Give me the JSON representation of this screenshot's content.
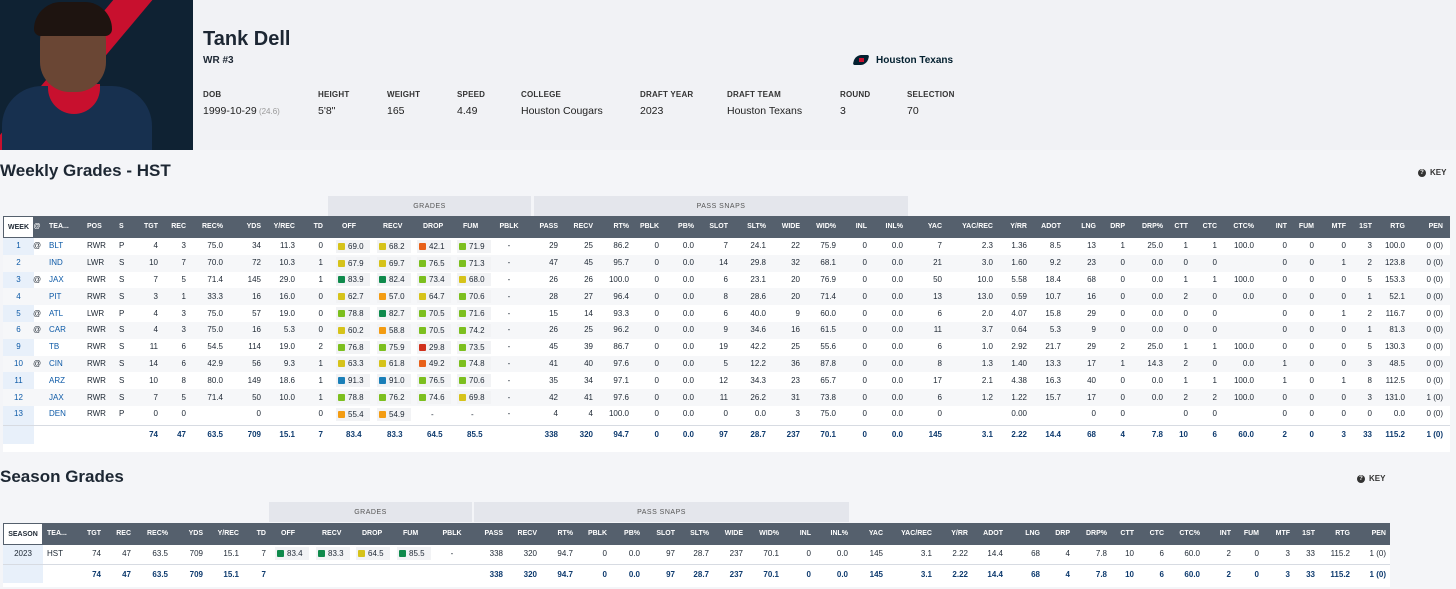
{
  "player": {
    "name": "Tank Dell",
    "position": "WR #3",
    "team": "Houston Texans",
    "team_icon": "texans-logo-icon",
    "bio": [
      {
        "label": "DOB",
        "value": "1999-10-29",
        "sub": "(24.6)"
      },
      {
        "label": "HEIGHT",
        "value": "5'8\""
      },
      {
        "label": "WEIGHT",
        "value": "165"
      },
      {
        "label": "SPEED",
        "value": "4.49"
      },
      {
        "label": "COLLEGE",
        "value": "Houston Cougars"
      },
      {
        "label": "DRAFT YEAR",
        "value": "2023"
      },
      {
        "label": "DRAFT TEAM",
        "value": "Houston Texans"
      },
      {
        "label": "ROUND",
        "value": "3"
      },
      {
        "label": "SELECTION",
        "value": "70"
      }
    ]
  },
  "weekly": {
    "title": "Weekly Grades - HST",
    "key_label": "KEY",
    "group_grades": "GRADES",
    "group_pass_snaps": "PASS SNAPS",
    "columns": [
      "WEEK",
      "@",
      "TEA...",
      "POS",
      "S",
      "TGT",
      "REC",
      "REC%",
      "YDS",
      "Y/REC",
      "TD",
      "OFF",
      "RECV",
      "DROP",
      "FUM",
      "PBLK",
      "PASS",
      "RECV",
      "RT%",
      "PBLK",
      "PB%",
      "SLOT",
      "SLT%",
      "WIDE",
      "WID%",
      "INL",
      "INL%",
      "YAC",
      "YAC/REC",
      "Y/RR",
      "ADOT",
      "LNG",
      "DRP",
      "DRP%",
      "CTT",
      "CTC",
      "CTC%",
      "INT",
      "FUM",
      "MTF",
      "1ST",
      "RTG",
      "PEN"
    ],
    "rows": [
      [
        "1",
        "@",
        "BLT",
        "RWR",
        "P",
        "4",
        "3",
        "75.0",
        "34",
        "11.3",
        "0",
        "69.0",
        "68.2",
        "42.1",
        "71.9",
        "-",
        "29",
        "25",
        "86.2",
        "0",
        "0.0",
        "7",
        "24.1",
        "22",
        "75.9",
        "0",
        "0.0",
        "7",
        "2.3",
        "1.36",
        "8.5",
        "13",
        "1",
        "25.0",
        "1",
        "1",
        "100.0",
        "0",
        "0",
        "0",
        "3",
        "100.0",
        "0 (0)"
      ],
      [
        "2",
        "",
        "IND",
        "LWR",
        "S",
        "10",
        "7",
        "70.0",
        "72",
        "10.3",
        "1",
        "67.9",
        "69.7",
        "76.5",
        "71.3",
        "-",
        "47",
        "45",
        "95.7",
        "0",
        "0.0",
        "14",
        "29.8",
        "32",
        "68.1",
        "0",
        "0.0",
        "21",
        "3.0",
        "1.60",
        "9.2",
        "23",
        "0",
        "0.0",
        "0",
        "0",
        "",
        "0",
        "0",
        "1",
        "2",
        "123.8",
        "0 (0)"
      ],
      [
        "3",
        "@",
        "JAX",
        "RWR",
        "S",
        "7",
        "5",
        "71.4",
        "145",
        "29.0",
        "1",
        "83.9",
        "82.4",
        "73.4",
        "68.0",
        "-",
        "26",
        "26",
        "100.0",
        "0",
        "0.0",
        "6",
        "23.1",
        "20",
        "76.9",
        "0",
        "0.0",
        "50",
        "10.0",
        "5.58",
        "18.4",
        "68",
        "0",
        "0.0",
        "1",
        "1",
        "100.0",
        "0",
        "0",
        "0",
        "5",
        "153.3",
        "0 (0)"
      ],
      [
        "4",
        "",
        "PIT",
        "RWR",
        "S",
        "3",
        "1",
        "33.3",
        "16",
        "16.0",
        "0",
        "62.7",
        "57.0",
        "64.7",
        "70.6",
        "-",
        "28",
        "27",
        "96.4",
        "0",
        "0.0",
        "8",
        "28.6",
        "20",
        "71.4",
        "0",
        "0.0",
        "13",
        "13.0",
        "0.59",
        "10.7",
        "16",
        "0",
        "0.0",
        "2",
        "0",
        "0.0",
        "0",
        "0",
        "0",
        "1",
        "52.1",
        "0 (0)"
      ],
      [
        "5",
        "@",
        "ATL",
        "LWR",
        "P",
        "4",
        "3",
        "75.0",
        "57",
        "19.0",
        "0",
        "78.8",
        "82.7",
        "70.5",
        "71.6",
        "-",
        "15",
        "14",
        "93.3",
        "0",
        "0.0",
        "6",
        "40.0",
        "9",
        "60.0",
        "0",
        "0.0",
        "6",
        "2.0",
        "4.07",
        "15.8",
        "29",
        "0",
        "0.0",
        "0",
        "0",
        "",
        "0",
        "0",
        "1",
        "2",
        "116.7",
        "0 (0)"
      ],
      [
        "6",
        "@",
        "CAR",
        "RWR",
        "S",
        "4",
        "3",
        "75.0",
        "16",
        "5.3",
        "0",
        "60.2",
        "58.8",
        "70.5",
        "74.2",
        "-",
        "26",
        "25",
        "96.2",
        "0",
        "0.0",
        "9",
        "34.6",
        "16",
        "61.5",
        "0",
        "0.0",
        "11",
        "3.7",
        "0.64",
        "5.3",
        "9",
        "0",
        "0.0",
        "0",
        "0",
        "",
        "0",
        "0",
        "0",
        "1",
        "81.3",
        "0 (0)"
      ],
      [
        "9",
        "",
        "TB",
        "RWR",
        "S",
        "11",
        "6",
        "54.5",
        "114",
        "19.0",
        "2",
        "76.8",
        "75.9",
        "29.8",
        "73.5",
        "-",
        "45",
        "39",
        "86.7",
        "0",
        "0.0",
        "19",
        "42.2",
        "25",
        "55.6",
        "0",
        "0.0",
        "6",
        "1.0",
        "2.92",
        "21.7",
        "29",
        "2",
        "25.0",
        "1",
        "1",
        "100.0",
        "0",
        "0",
        "0",
        "5",
        "130.3",
        "0 (0)"
      ],
      [
        "10",
        "@",
        "CIN",
        "RWR",
        "S",
        "14",
        "6",
        "42.9",
        "56",
        "9.3",
        "1",
        "63.3",
        "61.8",
        "49.2",
        "74.8",
        "-",
        "41",
        "40",
        "97.6",
        "0",
        "0.0",
        "5",
        "12.2",
        "36",
        "87.8",
        "0",
        "0.0",
        "8",
        "1.3",
        "1.40",
        "13.3",
        "17",
        "1",
        "14.3",
        "2",
        "0",
        "0.0",
        "1",
        "0",
        "0",
        "3",
        "48.5",
        "0 (0)"
      ],
      [
        "11",
        "",
        "ARZ",
        "RWR",
        "S",
        "10",
        "8",
        "80.0",
        "149",
        "18.6",
        "1",
        "91.3",
        "91.0",
        "76.5",
        "70.6",
        "-",
        "35",
        "34",
        "97.1",
        "0",
        "0.0",
        "12",
        "34.3",
        "23",
        "65.7",
        "0",
        "0.0",
        "17",
        "2.1",
        "4.38",
        "16.3",
        "40",
        "0",
        "0.0",
        "1",
        "1",
        "100.0",
        "1",
        "0",
        "1",
        "8",
        "112.5",
        "0 (0)"
      ],
      [
        "12",
        "",
        "JAX",
        "RWR",
        "S",
        "7",
        "5",
        "71.4",
        "50",
        "10.0",
        "1",
        "78.8",
        "76.2",
        "74.6",
        "69.8",
        "-",
        "42",
        "41",
        "97.6",
        "0",
        "0.0",
        "11",
        "26.2",
        "31",
        "73.8",
        "0",
        "0.0",
        "6",
        "1.2",
        "1.22",
        "15.7",
        "17",
        "0",
        "0.0",
        "2",
        "2",
        "100.0",
        "0",
        "0",
        "0",
        "3",
        "131.0",
        "1 (0)"
      ],
      [
        "13",
        "",
        "DEN",
        "RWR",
        "P",
        "0",
        "0",
        "",
        "0",
        "",
        "0",
        "55.4",
        "54.9",
        "-",
        "-",
        "-",
        "4",
        "4",
        "100.0",
        "0",
        "0.0",
        "0",
        "0.0",
        "3",
        "75.0",
        "0",
        "0.0",
        "0",
        "",
        "0.00",
        "",
        "0",
        "0",
        "",
        "0",
        "0",
        "",
        "0",
        "0",
        "0",
        "0",
        "0.0",
        "0 (0)"
      ]
    ],
    "totals": [
      "",
      "",
      "",
      "",
      "",
      "74",
      "47",
      "63.5",
      "709",
      "15.1",
      "7",
      "83.4",
      "83.3",
      "64.5",
      "85.5",
      "",
      "338",
      "320",
      "94.7",
      "0",
      "0.0",
      "97",
      "28.7",
      "237",
      "70.1",
      "0",
      "0.0",
      "145",
      "3.1",
      "2.22",
      "14.4",
      "68",
      "4",
      "7.8",
      "10",
      "6",
      "60.0",
      "2",
      "0",
      "3",
      "33",
      "115.2",
      "1 (0)"
    ]
  },
  "season": {
    "title": "Season Grades",
    "key_label": "KEY",
    "group_grades": "GRADES",
    "group_pass_snaps": "PASS SNAPS",
    "columns": [
      "SEASON",
      "TEA...",
      "TGT",
      "REC",
      "REC%",
      "YDS",
      "Y/REC",
      "TD",
      "OFF",
      "RECV",
      "DROP",
      "FUM",
      "PBLK",
      "PASS",
      "RECV",
      "RT%",
      "PBLK",
      "PB%",
      "SLOT",
      "SLT%",
      "WIDE",
      "WID%",
      "INL",
      "INL%",
      "YAC",
      "YAC/REC",
      "Y/RR",
      "ADOT",
      "LNG",
      "DRP",
      "DRP%",
      "CTT",
      "CTC",
      "CTC%",
      "INT",
      "FUM",
      "MTF",
      "1ST",
      "RTG",
      "PEN"
    ],
    "rows": [
      [
        "2023",
        "HST",
        "74",
        "47",
        "63.5",
        "709",
        "15.1",
        "7",
        "83.4",
        "83.3",
        "64.5",
        "85.5",
        "-",
        "338",
        "320",
        "94.7",
        "0",
        "0.0",
        "97",
        "28.7",
        "237",
        "70.1",
        "0",
        "0.0",
        "145",
        "3.1",
        "2.22",
        "14.4",
        "68",
        "4",
        "7.8",
        "10",
        "6",
        "60.0",
        "2",
        "0",
        "3",
        "33",
        "115.2",
        "1 (0)"
      ]
    ],
    "totals": [
      "",
      "",
      "74",
      "47",
      "63.5",
      "709",
      "15.1",
      "7",
      "",
      "",
      "",
      "",
      "",
      "338",
      "320",
      "94.7",
      "0",
      "0.0",
      "97",
      "28.7",
      "237",
      "70.1",
      "0",
      "0.0",
      "145",
      "3.1",
      "2.22",
      "14.4",
      "68",
      "4",
      "7.8",
      "10",
      "6",
      "60.0",
      "2",
      "0",
      "3",
      "33",
      "115.2",
      "1 (0)"
    ]
  },
  "grade_colors": {
    "elite": "#1a7fb8",
    "high": "#0f8a4c",
    "good": "#7cbf1e",
    "avg": "#d6c31a",
    "below": "#f39c12",
    "poor": "#e8611a",
    "bad": "#d0311c"
  },
  "key_icon": "help-circle-icon"
}
